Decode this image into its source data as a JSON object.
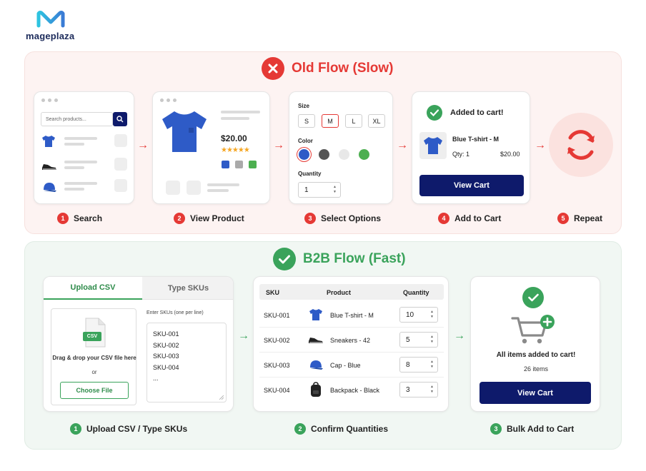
{
  "brand": {
    "name": "mageplaza"
  },
  "old_flow": {
    "title": "Old Flow (Slow)",
    "steps": [
      {
        "num": "1",
        "label": "Search"
      },
      {
        "num": "2",
        "label": "View Product"
      },
      {
        "num": "3",
        "label": "Select Options"
      },
      {
        "num": "4",
        "label": "Add to Cart"
      },
      {
        "num": "5",
        "label": "Repeat"
      }
    ],
    "search": {
      "placeholder": "Search products..."
    },
    "product": {
      "price": "$20.00"
    },
    "options": {
      "size_label": "Size",
      "sizes": [
        "S",
        "M",
        "L",
        "XL"
      ],
      "selected_size": "M",
      "color_label": "Color",
      "colors": [
        "#2e5bc7",
        "#555555",
        "#e8e8e8",
        "#4caf50"
      ],
      "quantity_label": "Quantity",
      "quantity": "1"
    },
    "cart": {
      "added": "Added to cart!",
      "item": "Blue T-shirt - M",
      "qty": "Qty: 1",
      "price": "$20.00",
      "button": "View Cart"
    }
  },
  "b2b_flow": {
    "title": "B2B Flow (Fast)",
    "steps": [
      {
        "num": "1",
        "label": "Upload CSV / Type SKUs"
      },
      {
        "num": "2",
        "label": "Confirm Quantities"
      },
      {
        "num": "3",
        "label": "Bulk Add to Cart"
      }
    ],
    "upload": {
      "tab_csv": "Upload CSV",
      "tab_skus": "Type SKUs",
      "file_badge": "CSV",
      "drag_text": "Drag & drop your CSV file here",
      "or": "or",
      "choose_button": "Choose File",
      "sku_hint": "Enter SKUs (one per line)",
      "sku_lines": [
        "SKU-001",
        "SKU-002",
        "SKU-003",
        "SKU-004",
        "..."
      ]
    },
    "table": {
      "headers": [
        "SKU",
        "Product",
        "Quantity"
      ],
      "rows": [
        {
          "sku": "SKU-001",
          "product": "Blue T-shirt - M",
          "qty": "10"
        },
        {
          "sku": "SKU-002",
          "product": "Sneakers - 42",
          "qty": "5"
        },
        {
          "sku": "SKU-003",
          "product": "Cap - Blue",
          "qty": "8"
        },
        {
          "sku": "SKU-004",
          "product": "Backpack - Black",
          "qty": "3"
        }
      ]
    },
    "result": {
      "message": "All items added to cart!",
      "count": "26 items",
      "button": "View Cart"
    }
  },
  "colors": {
    "red": "#e53935",
    "green": "#3aa35b",
    "navy": "#0e1a6b"
  }
}
